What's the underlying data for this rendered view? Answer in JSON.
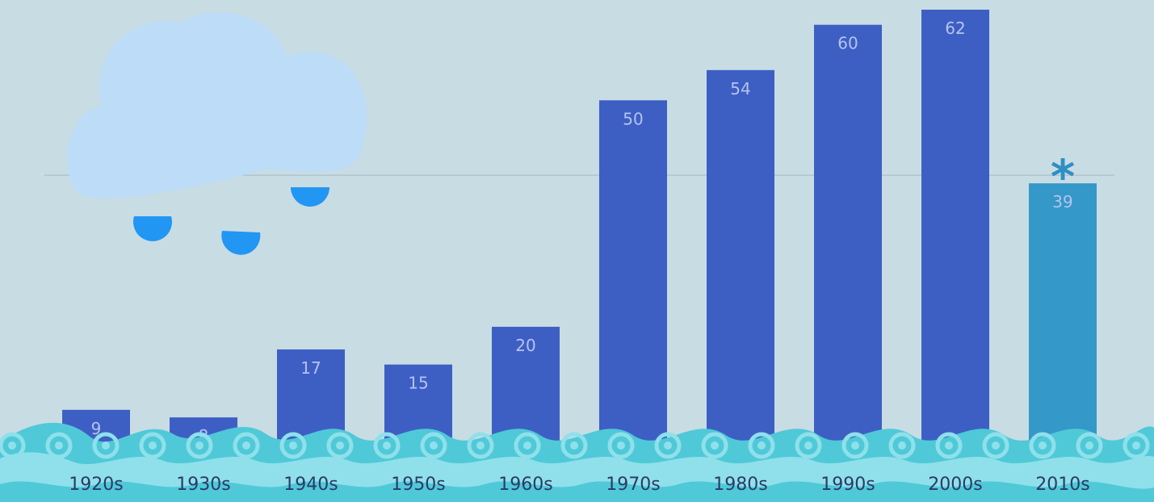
{
  "chart_data": {
    "type": "bar",
    "categories": [
      "1920s",
      "1930s",
      "1940s",
      "1950s",
      "1960s",
      "1970s",
      "1980s",
      "1990s",
      "2000s",
      "2010s"
    ],
    "values": [
      9,
      8,
      17,
      15,
      20,
      50,
      54,
      60,
      62,
      39
    ],
    "value_labels": [
      "9",
      "8",
      "17",
      "15",
      "20",
      "50",
      "54",
      "60",
      "62",
      "39"
    ],
    "title": "",
    "xlabel": "",
    "ylabel": "",
    "ylim": [
      0,
      62
    ],
    "grid": false,
    "reference_line": {
      "value": 39
    },
    "annotations": [
      {
        "category": "2010s",
        "text": "*"
      }
    ],
    "colors": {
      "background": "#c8dce4",
      "bar": "#3d5fc4",
      "highlight_bar": "#3498c8",
      "bar_label": "#b6c3ee",
      "reference_line": "#a9bec8",
      "asterisk": "#2f8fc4",
      "cloud": "#bcdcf7",
      "raindrop": "#2196f3",
      "wave_dark": "#4fc9d8",
      "wave_light": "#8fe0ea"
    },
    "highlight_category": "2010s",
    "decorations": [
      "rain-cloud",
      "raindrops",
      "ocean-waves"
    ]
  }
}
